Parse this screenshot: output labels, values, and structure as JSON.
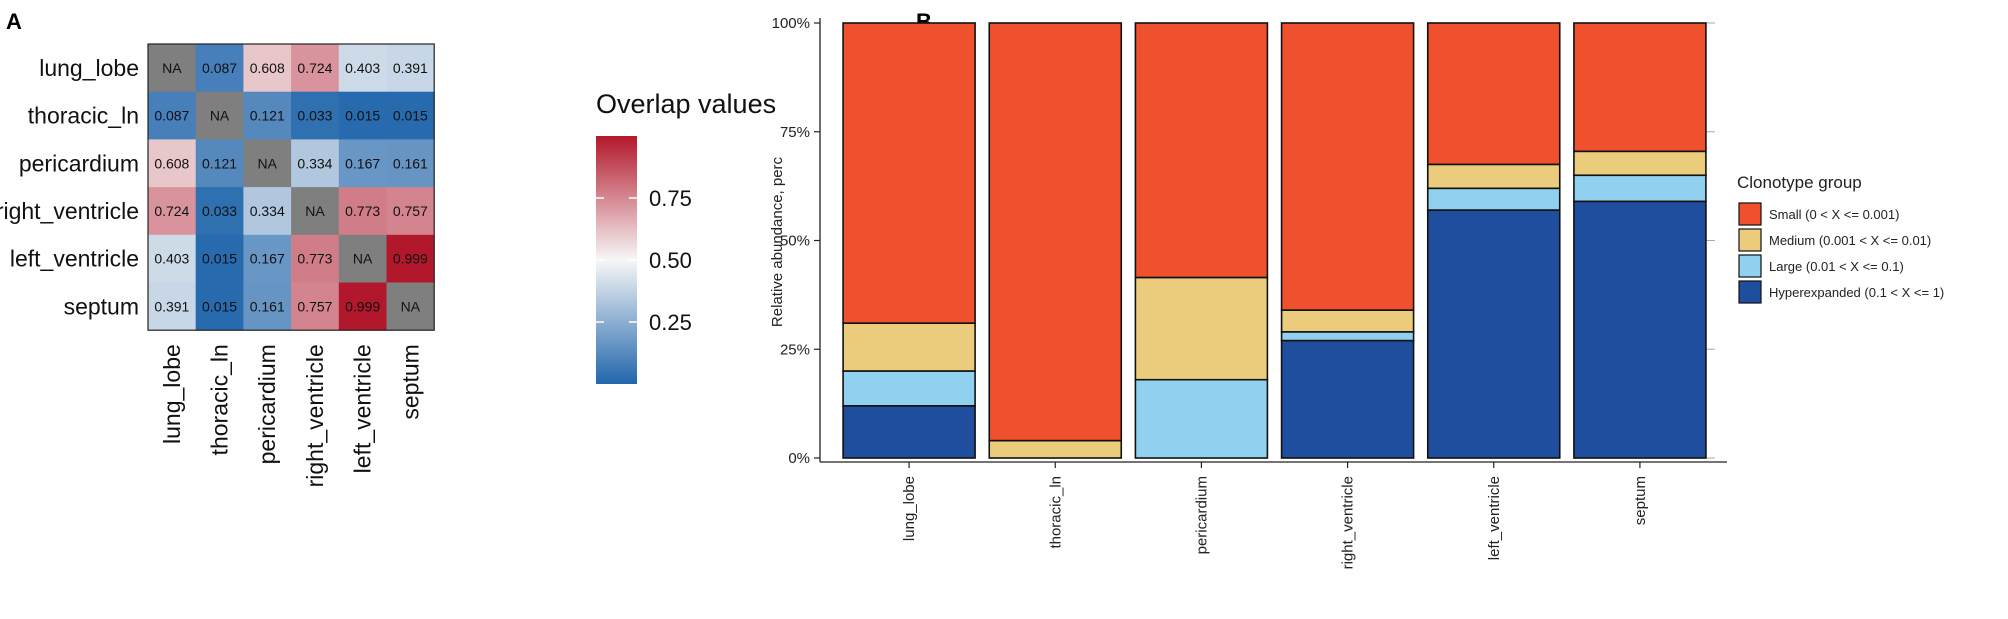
{
  "chart_data": [
    {
      "panel": "A",
      "type": "heatmap",
      "rows": [
        "lung_lobe",
        "thoracic_ln",
        "pericardium",
        "right_ventricle",
        "left_ventricle",
        "septum"
      ],
      "columns": [
        "lung_lobe",
        "thoracic_ln",
        "pericardium",
        "right_ventricle",
        "left_ventricle",
        "septum"
      ],
      "values": [
        [
          null,
          0.087,
          0.608,
          0.724,
          0.403,
          0.391
        ],
        [
          0.087,
          null,
          0.121,
          0.033,
          0.015,
          0.015
        ],
        [
          0.608,
          0.121,
          null,
          0.334,
          0.167,
          0.161
        ],
        [
          0.724,
          0.033,
          0.334,
          null,
          0.773,
          0.757
        ],
        [
          0.403,
          0.015,
          0.167,
          0.773,
          null,
          0.999
        ],
        [
          0.391,
          0.015,
          0.161,
          0.757,
          0.999,
          null
        ]
      ],
      "cell_labels": [
        [
          "NA",
          "0.087",
          "0.608",
          "0.724",
          "0.403",
          "0.391"
        ],
        [
          "0.087",
          "NA",
          "0.121",
          "0.033",
          "0.015",
          "0.015"
        ],
        [
          "0.608",
          "0.121",
          "NA",
          "0.334",
          "0.167",
          "0.161"
        ],
        [
          "0.724",
          "0.033",
          "0.334",
          "NA",
          "0.773",
          "0.757"
        ],
        [
          "0.403",
          "0.015",
          "0.167",
          "0.773",
          "NA",
          "0.999"
        ],
        [
          "0.391",
          "0.015",
          "0.161",
          "0.757",
          "0.999",
          "NA"
        ]
      ],
      "na_color": "#7f7f7f",
      "colorscale": {
        "low": "#2166ac",
        "mid": "#f7f7f7",
        "high": "#b2182b",
        "midpoint": 0.5,
        "range": [
          0,
          1
        ]
      },
      "legend": {
        "title": "Overlap values",
        "ticks": [
          0.25,
          0.5,
          0.75
        ],
        "tick_labels": [
          "0.25",
          "0.50",
          "0.75"
        ],
        "range": [
          0.0,
          1.0
        ]
      }
    },
    {
      "panel": "B",
      "type": "bar",
      "stacked": true,
      "categories": [
        "lung_lobe",
        "thoracic_ln",
        "pericardium",
        "right_ventricle",
        "left_ventricle",
        "septum"
      ],
      "series": [
        {
          "name": "Hyperexpanded (0.1 < X <= 1)",
          "color": "#1f4e9e",
          "values": [
            12,
            0,
            0,
            27,
            57,
            59
          ]
        },
        {
          "name": "Large (0.01 < X <= 0.1)",
          "color": "#8fd1ef",
          "values": [
            8,
            0,
            18,
            2,
            5,
            6
          ]
        },
        {
          "name": "Medium (0.001 < X <= 0.01)",
          "color": "#ebcc7c",
          "values": [
            11,
            4,
            23.5,
            5,
            5.5,
            5.5
          ]
        },
        {
          "name": "Small (0 < X <= 0.001)",
          "color": "#ef502d",
          "values": [
            69,
            96,
            58.5,
            66,
            32.5,
            29.5
          ]
        }
      ],
      "ylabel": "Relative abundance, perc",
      "ylim": [
        0,
        100
      ],
      "yticks": [
        0,
        25,
        50,
        75,
        100
      ],
      "ytick_labels": [
        "0%",
        "25%",
        "50%",
        "75%",
        "100%"
      ],
      "legend_title": "Clonotype group",
      "legend_order": [
        3,
        2,
        1,
        0
      ],
      "legend_position": "right"
    }
  ],
  "panels": {
    "a_label": "A",
    "b_label": "B"
  }
}
